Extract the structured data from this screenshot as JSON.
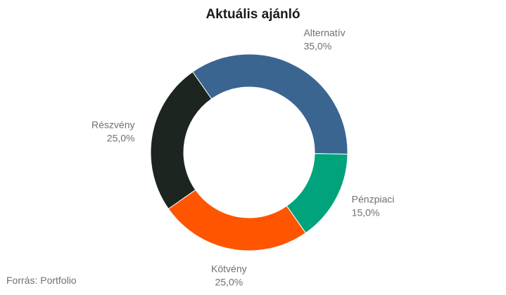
{
  "title": "Aktuális ajánló",
  "source": "Forrás: Portfolio",
  "chart_data": {
    "type": "pie",
    "donut": true,
    "title": "Aktuális ajánló",
    "slices": [
      {
        "label": "Alternatív",
        "value": 35.0,
        "value_label": "35,0%",
        "color": "#3a6591"
      },
      {
        "label": "Pénzpiaci",
        "value": 15.0,
        "value_label": "15,0%",
        "color": "#00a37c"
      },
      {
        "label": "Kötvény",
        "value": 25.0,
        "value_label": "25,0%",
        "color": "#ff5400"
      },
      {
        "label": "Részvény",
        "value": 25.0,
        "value_label": "25,0%",
        "color": "#1d2520"
      }
    ],
    "start_angle_deg": -35,
    "legend": "none",
    "labels_position": "outside"
  }
}
